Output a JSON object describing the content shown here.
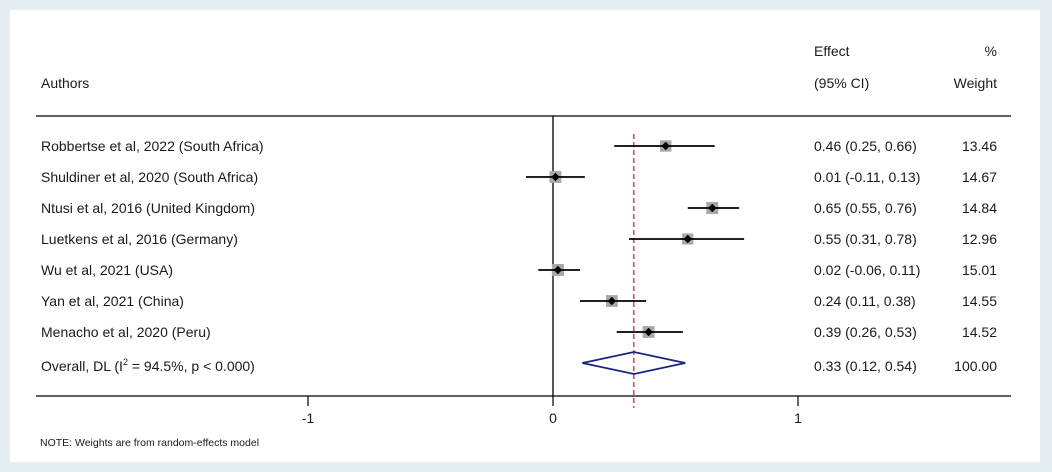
{
  "chart_data": {
    "type": "forest",
    "header": {
      "authors": "Authors",
      "effect": "Effect",
      "ci": "(95% CI)",
      "pct": "%",
      "weight": "Weight"
    },
    "studies": [
      {
        "label": "Robbertse et al, 2022 (South Africa)",
        "effect": 0.46,
        "lower": 0.25,
        "upper": 0.66,
        "effect_text": "0.46 (0.25, 0.66)",
        "weight": 13.46,
        "weight_text": "13.46"
      },
      {
        "label": "Shuldiner et al, 2020 (South Africa)",
        "effect": 0.01,
        "lower": -0.11,
        "upper": 0.13,
        "effect_text": "0.01 (-0.11, 0.13)",
        "weight": 14.67,
        "weight_text": "14.67"
      },
      {
        "label": "Ntusi et al, 2016 (United Kingdom)",
        "effect": 0.65,
        "lower": 0.55,
        "upper": 0.76,
        "effect_text": "0.65 (0.55, 0.76)",
        "weight": 14.84,
        "weight_text": "14.84"
      },
      {
        "label": "Luetkens et al, 2016 (Germany)",
        "effect": 0.55,
        "lower": 0.31,
        "upper": 0.78,
        "effect_text": "0.55 (0.31, 0.78)",
        "weight": 12.96,
        "weight_text": "12.96"
      },
      {
        "label": "Wu et al, 2021 (USA)",
        "effect": 0.02,
        "lower": -0.06,
        "upper": 0.11,
        "effect_text": "0.02 (-0.06, 0.11)",
        "weight": 15.01,
        "weight_text": "15.01"
      },
      {
        "label": "Yan et al, 2021 (China)",
        "effect": 0.24,
        "lower": 0.11,
        "upper": 0.38,
        "effect_text": "0.24 (0.11, 0.38)",
        "weight": 14.55,
        "weight_text": "14.55"
      },
      {
        "label": "Menacho et al, 2020 (Peru)",
        "effect": 0.39,
        "lower": 0.26,
        "upper": 0.53,
        "effect_text": "0.39 (0.26, 0.53)",
        "weight": 14.52,
        "weight_text": "14.52"
      }
    ],
    "overall": {
      "label_prefix": "Overall, DL (I",
      "label_sup": "2",
      "label_suffix": " = 94.5%, p < 0.000)",
      "effect": 0.33,
      "lower": 0.12,
      "upper": 0.54,
      "effect_text": "0.33 (0.12, 0.54)",
      "weight": 100.0,
      "weight_text": "100.00"
    },
    "x_ticks": [
      -1,
      0,
      1
    ],
    "x_tick_labels": [
      "-1",
      "0",
      "1"
    ],
    "xlim": [
      -2.0,
      1.65
    ],
    "note": "NOTE: Weights are from random-effects model",
    "colors": {
      "line": "#000000",
      "marker": "#000000",
      "weight_box": "#a8a8a8",
      "reference": "#b22222",
      "diamond": "#1a237e",
      "background": "#e4edf2"
    }
  }
}
